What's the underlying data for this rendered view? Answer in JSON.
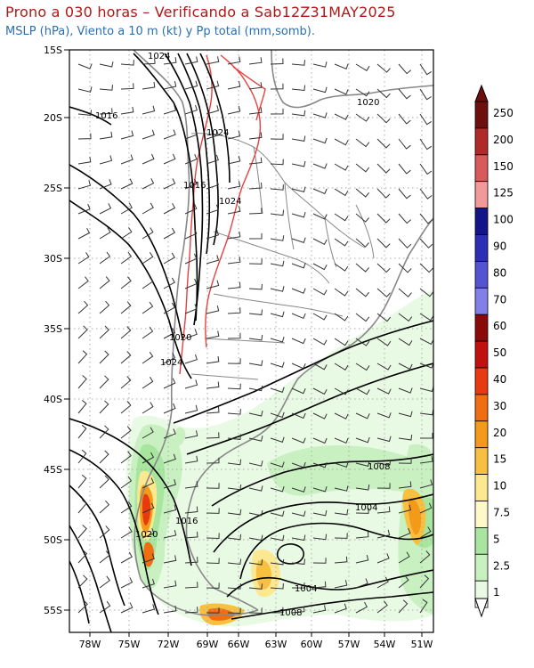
{
  "header": {
    "title": "Prono a 030 horas – Verificando a Sab12Z31MAY2025",
    "subtitle": "MSLP (hPa), Viento a 10 m (kt) y Pp total (mm,somb)."
  },
  "map": {
    "lat_labels": [
      "15S",
      "20S",
      "25S",
      "30S",
      "35S",
      "40S",
      "45S",
      "50S",
      "55S"
    ],
    "lon_labels": [
      "78W",
      "75W",
      "72W",
      "69W",
      "66W",
      "63W",
      "60W",
      "57W",
      "54W",
      "51W"
    ],
    "isobar_labels": [
      "1024",
      "1016",
      "1020",
      "1024",
      "1016",
      "1024",
      "1020",
      "1024",
      "1008",
      "1004",
      "1016",
      "1020",
      "1004",
      "1008"
    ],
    "colors": {
      "land_border": "#888888",
      "isobar": "#000000",
      "orography": "#e84040",
      "grid": "#aaaaaa"
    }
  },
  "colorbar": {
    "labels": [
      "250",
      "200",
      "150",
      "125",
      "100",
      "90",
      "80",
      "70",
      "60",
      "50",
      "40",
      "30",
      "20",
      "15",
      "10",
      "7.5",
      "5",
      "2.5",
      "1"
    ],
    "colors": [
      "#6e0f0f",
      "#b02a2a",
      "#d85a5a",
      "#f09a9a",
      "#14148a",
      "#2d2db5",
      "#5454d2",
      "#8080e8",
      "#8a0a0a",
      "#c01010",
      "#e83a10",
      "#f06d10",
      "#f49a1a",
      "#f8c040",
      "#fce890",
      "#fff8c8",
      "#a8e6a0",
      "#c8f0c0",
      "#e8fae4"
    ]
  }
}
